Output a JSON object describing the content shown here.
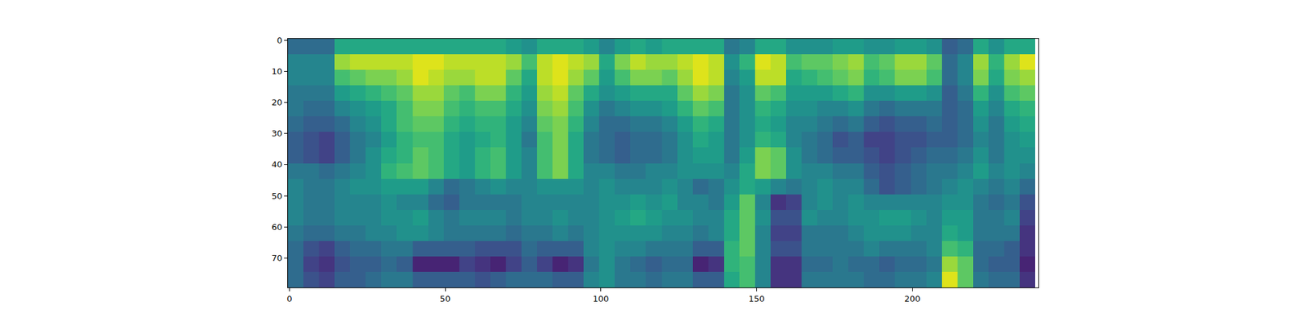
{
  "chart_data": {
    "type": "heatmap",
    "color": "viridis",
    "xlim": [
      -0.5,
      240.5
    ],
    "ylim": [
      79.5,
      -0.5
    ],
    "xticks": [
      0,
      50,
      100,
      150,
      200
    ],
    "yticks": [
      0,
      10,
      20,
      30,
      40,
      50,
      60,
      70
    ],
    "zlim": [
      0,
      1
    ],
    "x": [
      2,
      7,
      12,
      17,
      22,
      27,
      32,
      37,
      42,
      47,
      52,
      57,
      62,
      67,
      72,
      77,
      82,
      87,
      92,
      97,
      102,
      107,
      112,
      117,
      122,
      127,
      132,
      137,
      142,
      147,
      152,
      157,
      162,
      167,
      172,
      177,
      182,
      187,
      192,
      197,
      202,
      207,
      212,
      217,
      222,
      227,
      232,
      237
    ],
    "y": [
      2,
      7,
      12,
      17,
      22,
      27,
      32,
      37,
      42,
      47,
      52,
      57,
      62,
      67,
      72,
      77
    ],
    "z_by_x": [
      [
        0.35,
        0.45,
        0.45,
        0.4,
        0.4,
        0.35,
        0.3,
        0.3,
        0.4,
        0.45,
        0.45,
        0.45,
        0.4,
        0.35,
        0.35,
        0.35
      ],
      [
        0.35,
        0.45,
        0.45,
        0.4,
        0.35,
        0.3,
        0.25,
        0.25,
        0.4,
        0.4,
        0.4,
        0.4,
        0.35,
        0.25,
        0.2,
        0.25
      ],
      [
        0.35,
        0.45,
        0.45,
        0.4,
        0.35,
        0.3,
        0.2,
        0.2,
        0.35,
        0.4,
        0.4,
        0.4,
        0.35,
        0.2,
        0.15,
        0.2
      ],
      [
        0.6,
        0.85,
        0.7,
        0.55,
        0.45,
        0.35,
        0.3,
        0.3,
        0.4,
        0.45,
        0.45,
        0.45,
        0.4,
        0.3,
        0.25,
        0.3
      ],
      [
        0.6,
        0.9,
        0.75,
        0.6,
        0.5,
        0.45,
        0.4,
        0.4,
        0.45,
        0.5,
        0.45,
        0.45,
        0.4,
        0.35,
        0.3,
        0.3
      ],
      [
        0.6,
        0.9,
        0.8,
        0.65,
        0.55,
        0.5,
        0.45,
        0.5,
        0.5,
        0.5,
        0.45,
        0.45,
        0.45,
        0.35,
        0.3,
        0.35
      ],
      [
        0.6,
        0.9,
        0.8,
        0.7,
        0.6,
        0.6,
        0.55,
        0.6,
        0.65,
        0.55,
        0.5,
        0.5,
        0.45,
        0.4,
        0.35,
        0.4
      ],
      [
        0.6,
        0.9,
        0.85,
        0.75,
        0.7,
        0.7,
        0.65,
        0.65,
        0.7,
        0.55,
        0.45,
        0.5,
        0.5,
        0.4,
        0.3,
        0.4
      ],
      [
        0.6,
        0.95,
        0.95,
        0.85,
        0.8,
        0.75,
        0.7,
        0.75,
        0.75,
        0.55,
        0.45,
        0.55,
        0.5,
        0.3,
        0.1,
        0.3
      ],
      [
        0.6,
        0.95,
        0.9,
        0.85,
        0.8,
        0.75,
        0.7,
        0.7,
        0.7,
        0.45,
        0.35,
        0.45,
        0.45,
        0.3,
        0.1,
        0.3
      ],
      [
        0.6,
        0.9,
        0.85,
        0.75,
        0.7,
        0.65,
        0.6,
        0.6,
        0.6,
        0.35,
        0.3,
        0.4,
        0.4,
        0.3,
        0.1,
        0.3
      ],
      [
        0.6,
        0.9,
        0.85,
        0.7,
        0.65,
        0.6,
        0.55,
        0.55,
        0.55,
        0.4,
        0.4,
        0.45,
        0.4,
        0.3,
        0.2,
        0.3
      ],
      [
        0.6,
        0.9,
        0.9,
        0.8,
        0.7,
        0.65,
        0.6,
        0.65,
        0.65,
        0.45,
        0.4,
        0.45,
        0.4,
        0.25,
        0.15,
        0.25
      ],
      [
        0.6,
        0.9,
        0.9,
        0.8,
        0.7,
        0.65,
        0.65,
        0.7,
        0.7,
        0.5,
        0.4,
        0.45,
        0.4,
        0.25,
        0.1,
        0.3
      ],
      [
        0.55,
        0.85,
        0.75,
        0.65,
        0.6,
        0.55,
        0.55,
        0.55,
        0.55,
        0.45,
        0.4,
        0.4,
        0.35,
        0.25,
        0.2,
        0.35
      ],
      [
        0.5,
        0.7,
        0.6,
        0.55,
        0.5,
        0.45,
        0.4,
        0.45,
        0.45,
        0.45,
        0.45,
        0.45,
        0.4,
        0.35,
        0.3,
        0.35
      ],
      [
        0.6,
        0.9,
        0.9,
        0.85,
        0.8,
        0.75,
        0.7,
        0.7,
        0.7,
        0.5,
        0.45,
        0.45,
        0.4,
        0.3,
        0.2,
        0.35
      ],
      [
        0.6,
        0.95,
        0.95,
        0.9,
        0.85,
        0.8,
        0.8,
        0.8,
        0.8,
        0.5,
        0.45,
        0.5,
        0.45,
        0.3,
        0.1,
        0.3
      ],
      [
        0.6,
        0.9,
        0.85,
        0.75,
        0.7,
        0.65,
        0.6,
        0.6,
        0.6,
        0.5,
        0.45,
        0.45,
        0.4,
        0.3,
        0.15,
        0.3
      ],
      [
        0.55,
        0.85,
        0.75,
        0.6,
        0.5,
        0.45,
        0.4,
        0.4,
        0.45,
        0.45,
        0.45,
        0.45,
        0.45,
        0.45,
        0.4,
        0.45
      ],
      [
        0.45,
        0.6,
        0.55,
        0.5,
        0.4,
        0.35,
        0.35,
        0.35,
        0.45,
        0.5,
        0.5,
        0.5,
        0.5,
        0.5,
        0.5,
        0.5
      ],
      [
        0.55,
        0.8,
        0.7,
        0.55,
        0.45,
        0.35,
        0.3,
        0.3,
        0.4,
        0.45,
        0.5,
        0.55,
        0.5,
        0.45,
        0.4,
        0.4
      ],
      [
        0.6,
        0.9,
        0.8,
        0.6,
        0.5,
        0.4,
        0.35,
        0.35,
        0.4,
        0.45,
        0.55,
        0.6,
        0.5,
        0.45,
        0.35,
        0.4
      ],
      [
        0.55,
        0.85,
        0.8,
        0.6,
        0.5,
        0.4,
        0.35,
        0.35,
        0.45,
        0.45,
        0.5,
        0.55,
        0.5,
        0.4,
        0.3,
        0.35
      ],
      [
        0.6,
        0.85,
        0.75,
        0.6,
        0.55,
        0.45,
        0.4,
        0.4,
        0.45,
        0.5,
        0.55,
        0.5,
        0.45,
        0.4,
        0.35,
        0.4
      ],
      [
        0.6,
        0.9,
        0.85,
        0.75,
        0.65,
        0.55,
        0.5,
        0.5,
        0.5,
        0.45,
        0.45,
        0.5,
        0.45,
        0.4,
        0.35,
        0.4
      ],
      [
        0.6,
        0.95,
        0.95,
        0.85,
        0.75,
        0.65,
        0.6,
        0.55,
        0.5,
        0.35,
        0.45,
        0.45,
        0.4,
        0.3,
        0.1,
        0.3
      ],
      [
        0.6,
        0.9,
        0.9,
        0.8,
        0.7,
        0.6,
        0.55,
        0.55,
        0.5,
        0.4,
        0.4,
        0.45,
        0.45,
        0.3,
        0.15,
        0.3
      ],
      [
        0.4,
        0.5,
        0.45,
        0.4,
        0.4,
        0.4,
        0.4,
        0.4,
        0.45,
        0.5,
        0.55,
        0.6,
        0.6,
        0.65,
        0.65,
        0.6
      ],
      [
        0.45,
        0.65,
        0.55,
        0.5,
        0.5,
        0.5,
        0.5,
        0.55,
        0.6,
        0.6,
        0.75,
        0.75,
        0.75,
        0.75,
        0.7,
        0.7
      ],
      [
        0.6,
        0.95,
        0.9,
        0.75,
        0.65,
        0.6,
        0.65,
        0.8,
        0.8,
        0.55,
        0.45,
        0.5,
        0.45,
        0.45,
        0.45,
        0.45
      ],
      [
        0.6,
        0.9,
        0.9,
        0.7,
        0.6,
        0.55,
        0.6,
        0.75,
        0.75,
        0.45,
        0.15,
        0.25,
        0.2,
        0.25,
        0.15,
        0.15
      ],
      [
        0.5,
        0.7,
        0.6,
        0.55,
        0.5,
        0.45,
        0.45,
        0.5,
        0.5,
        0.4,
        0.2,
        0.25,
        0.2,
        0.25,
        0.15,
        0.15
      ],
      [
        0.5,
        0.75,
        0.65,
        0.55,
        0.5,
        0.45,
        0.4,
        0.4,
        0.45,
        0.45,
        0.45,
        0.5,
        0.4,
        0.4,
        0.35,
        0.4
      ],
      [
        0.5,
        0.75,
        0.7,
        0.55,
        0.45,
        0.4,
        0.35,
        0.35,
        0.45,
        0.5,
        0.5,
        0.45,
        0.4,
        0.4,
        0.35,
        0.4
      ],
      [
        0.55,
        0.8,
        0.75,
        0.6,
        0.45,
        0.35,
        0.25,
        0.3,
        0.4,
        0.45,
        0.45,
        0.45,
        0.4,
        0.4,
        0.4,
        0.4
      ],
      [
        0.55,
        0.85,
        0.8,
        0.65,
        0.5,
        0.4,
        0.3,
        0.3,
        0.4,
        0.45,
        0.5,
        0.5,
        0.45,
        0.4,
        0.35,
        0.4
      ],
      [
        0.5,
        0.7,
        0.65,
        0.5,
        0.4,
        0.3,
        0.2,
        0.25,
        0.3,
        0.35,
        0.45,
        0.5,
        0.5,
        0.45,
        0.35,
        0.35
      ],
      [
        0.5,
        0.75,
        0.7,
        0.5,
        0.35,
        0.25,
        0.2,
        0.2,
        0.25,
        0.25,
        0.45,
        0.55,
        0.5,
        0.4,
        0.3,
        0.35
      ],
      [
        0.55,
        0.85,
        0.8,
        0.55,
        0.4,
        0.3,
        0.25,
        0.25,
        0.3,
        0.3,
        0.45,
        0.55,
        0.5,
        0.4,
        0.35,
        0.4
      ],
      [
        0.55,
        0.85,
        0.8,
        0.55,
        0.4,
        0.3,
        0.25,
        0.3,
        0.35,
        0.35,
        0.45,
        0.5,
        0.45,
        0.4,
        0.35,
        0.4
      ],
      [
        0.5,
        0.75,
        0.7,
        0.5,
        0.4,
        0.35,
        0.3,
        0.35,
        0.4,
        0.4,
        0.45,
        0.45,
        0.45,
        0.45,
        0.4,
        0.45
      ],
      [
        0.3,
        0.35,
        0.35,
        0.3,
        0.3,
        0.3,
        0.3,
        0.35,
        0.4,
        0.45,
        0.5,
        0.55,
        0.6,
        0.7,
        0.85,
        0.95
      ],
      [
        0.35,
        0.45,
        0.45,
        0.4,
        0.35,
        0.35,
        0.35,
        0.4,
        0.45,
        0.5,
        0.5,
        0.55,
        0.55,
        0.65,
        0.75,
        0.75
      ],
      [
        0.6,
        0.85,
        0.8,
        0.65,
        0.55,
        0.5,
        0.45,
        0.5,
        0.55,
        0.45,
        0.4,
        0.4,
        0.4,
        0.35,
        0.35,
        0.4
      ],
      [
        0.5,
        0.65,
        0.6,
        0.5,
        0.45,
        0.4,
        0.4,
        0.4,
        0.45,
        0.4,
        0.35,
        0.4,
        0.4,
        0.35,
        0.3,
        0.35
      ],
      [
        0.6,
        0.85,
        0.8,
        0.7,
        0.6,
        0.55,
        0.5,
        0.5,
        0.5,
        0.45,
        0.4,
        0.45,
        0.4,
        0.3,
        0.3,
        0.35
      ],
      [
        0.6,
        0.95,
        0.85,
        0.75,
        0.65,
        0.6,
        0.55,
        0.5,
        0.45,
        0.35,
        0.25,
        0.2,
        0.15,
        0.15,
        0.1,
        0.15
      ]
    ]
  }
}
